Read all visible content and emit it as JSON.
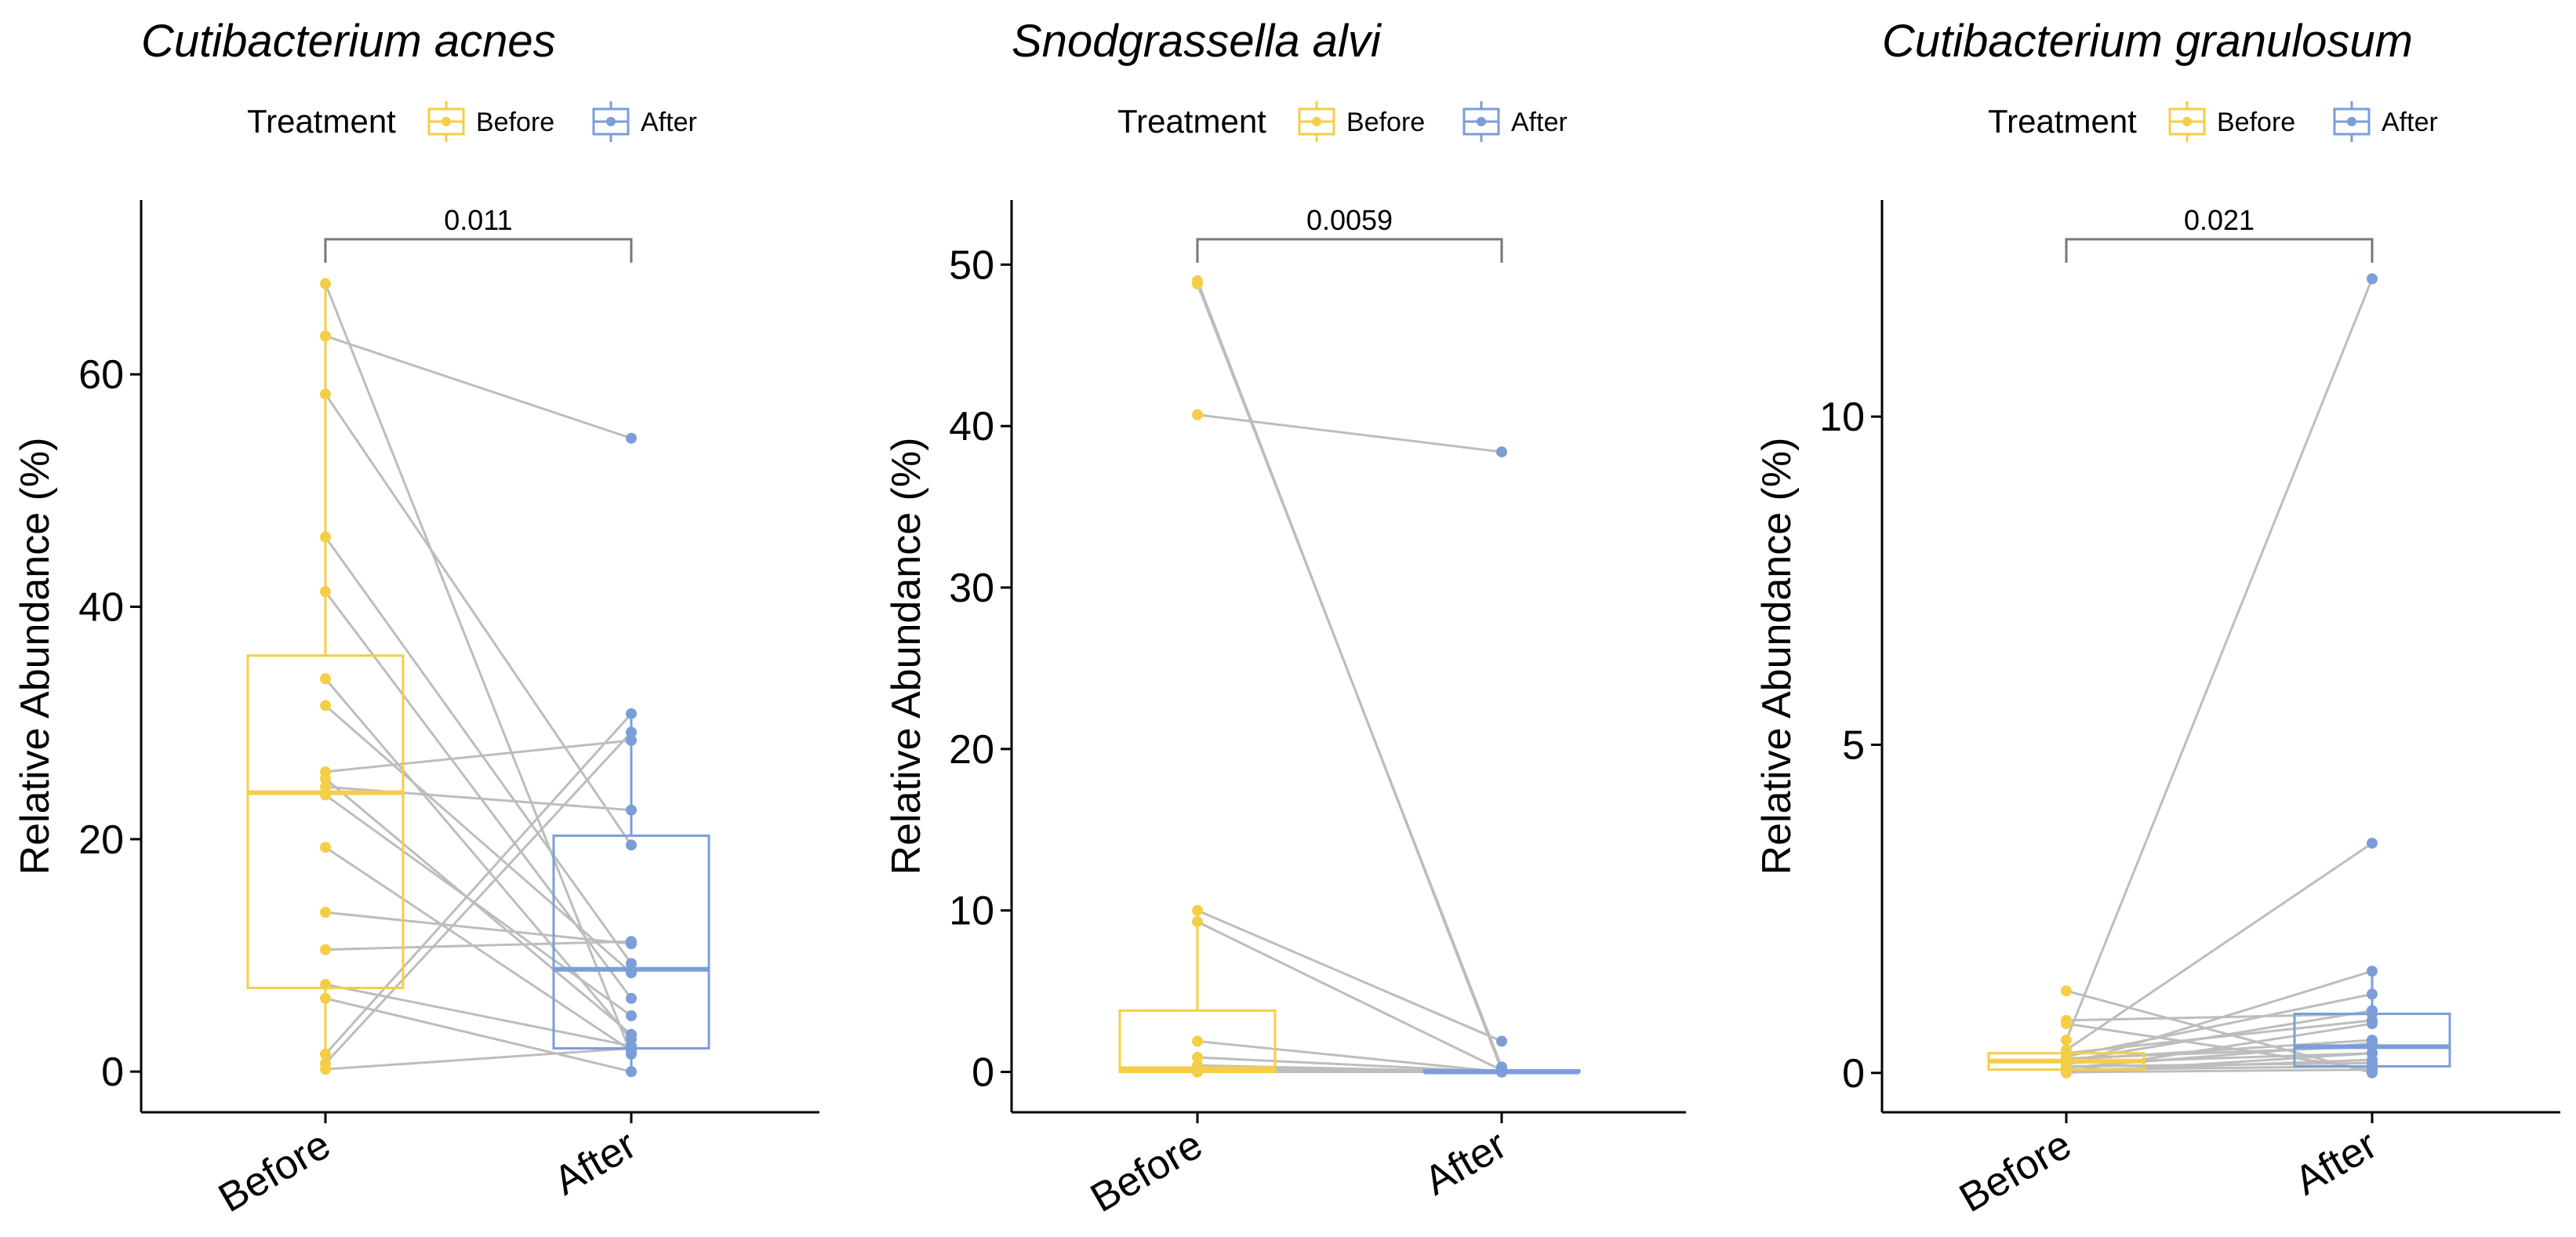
{
  "legend": {
    "title": "Treatment",
    "entries": [
      {
        "label": "Before",
        "color": "#F5CE47"
      },
      {
        "label": "After",
        "color": "#7B9ED8"
      }
    ]
  },
  "chart_data": [
    {
      "type": "box",
      "title": "Cutibacterium acnes",
      "ylabel": "Relative Abundance (%)",
      "categories": [
        "Before",
        "After"
      ],
      "ylim": [
        -3.5,
        75
      ],
      "yticks": [
        0,
        20,
        40,
        60
      ],
      "p_value": "0.011",
      "box": {
        "Before": {
          "q1": 7.2,
          "median": 24.0,
          "q3": 35.8,
          "lower_whisker": 0.2,
          "upper_whisker": 67.8
        },
        "After": {
          "q1": 2.0,
          "median": 8.8,
          "q3": 20.3,
          "lower_whisker": 0.0,
          "upper_whisker": 31.0
        }
      },
      "pairs": [
        [
          67.8,
          1.5
        ],
        [
          63.3,
          54.5
        ],
        [
          58.3,
          19.5
        ],
        [
          46.0,
          9.3
        ],
        [
          41.3,
          6.3
        ],
        [
          33.8,
          2.8
        ],
        [
          31.5,
          8.5
        ],
        [
          25.8,
          28.5
        ],
        [
          25.2,
          3.2
        ],
        [
          24.5,
          22.5
        ],
        [
          23.8,
          4.8
        ],
        [
          19.3,
          1.8
        ],
        [
          13.7,
          11.0
        ],
        [
          10.5,
          11.2
        ],
        [
          7.5,
          2.2
        ],
        [
          6.3,
          0.0
        ],
        [
          1.5,
          30.8
        ],
        [
          0.7,
          29.2
        ],
        [
          0.2,
          2.0
        ]
      ]
    },
    {
      "type": "box",
      "title": "Snodgrassella alvi",
      "ylabel": "Relative Abundance (%)",
      "categories": [
        "Before",
        "After"
      ],
      "ylim": [
        -2.5,
        54
      ],
      "yticks": [
        0,
        10,
        20,
        30,
        40,
        50
      ],
      "p_value": "0.0059",
      "box": {
        "Before": {
          "q1": 0.0,
          "median": 0.2,
          "q3": 3.8,
          "lower_whisker": 0.0,
          "upper_whisker": 10.0
        },
        "After": {
          "q1": 0.0,
          "median": 0.0,
          "q3": 0.1,
          "lower_whisker": 0.0,
          "upper_whisker": 0.1
        }
      },
      "pairs": [
        [
          49.0,
          0.1
        ],
        [
          48.8,
          0.3
        ],
        [
          40.7,
          38.4
        ],
        [
          10.0,
          1.9
        ],
        [
          9.3,
          0.1
        ],
        [
          1.9,
          0.0
        ],
        [
          0.9,
          0.0
        ],
        [
          0.4,
          0.0
        ],
        [
          0.2,
          0.0
        ],
        [
          0.1,
          0.0
        ],
        [
          0.0,
          0.0
        ],
        [
          0.0,
          0.0
        ],
        [
          0.0,
          0.0
        ],
        [
          0.0,
          0.0
        ],
        [
          0.0,
          0.0
        ],
        [
          0.0,
          0.0
        ],
        [
          0.0,
          0.0
        ],
        [
          0.0,
          0.0
        ],
        [
          0.0,
          0.0
        ]
      ]
    },
    {
      "type": "box",
      "title": "Cutibacterium granulosum",
      "ylabel": "Relative Abundance (%)",
      "categories": [
        "Before",
        "After"
      ],
      "ylim": [
        -0.6,
        13.3
      ],
      "yticks": [
        0,
        5,
        10
      ],
      "p_value": "0.021",
      "box": {
        "Before": {
          "q1": 0.05,
          "median": 0.18,
          "q3": 0.3,
          "lower_whisker": 0.0,
          "upper_whisker": 0.5
        },
        "After": {
          "q1": 0.1,
          "median": 0.4,
          "q3": 0.9,
          "lower_whisker": 0.0,
          "upper_whisker": 1.6
        }
      },
      "pairs": [
        [
          1.25,
          0.0
        ],
        [
          0.8,
          0.9
        ],
        [
          0.75,
          0.05
        ],
        [
          0.5,
          12.1
        ],
        [
          0.35,
          3.5
        ],
        [
          0.3,
          0.8
        ],
        [
          0.25,
          1.2
        ],
        [
          0.22,
          0.4
        ],
        [
          0.2,
          0.5
        ],
        [
          0.18,
          0.95
        ],
        [
          0.15,
          0.3
        ],
        [
          0.12,
          1.55
        ],
        [
          0.1,
          0.15
        ],
        [
          0.08,
          0.45
        ],
        [
          0.05,
          0.1
        ],
        [
          0.03,
          0.2
        ],
        [
          0.02,
          0.75
        ],
        [
          0.01,
          0.05
        ],
        [
          0.0,
          0.3
        ]
      ]
    }
  ]
}
